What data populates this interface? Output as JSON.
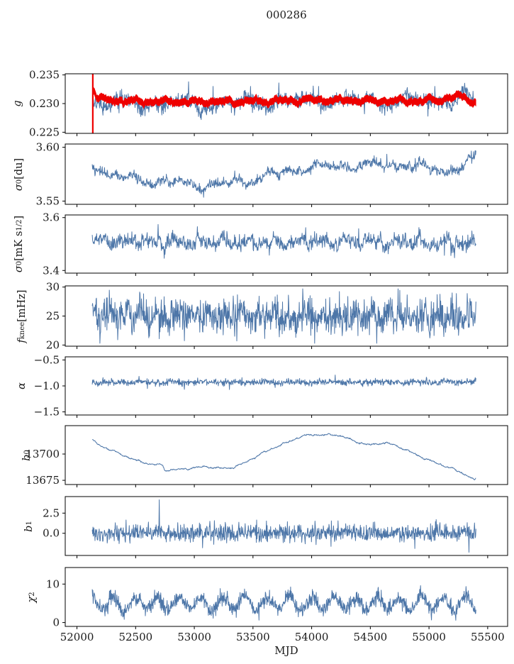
{
  "chart_data": {
    "type": "line",
    "title": "000286",
    "xlabel": "MJD",
    "xlim": [
      51900,
      55670
    ],
    "xticks": [
      {
        "v": 52000,
        "l": "52000"
      },
      {
        "v": 52500,
        "l": "52500"
      },
      {
        "v": 53000,
        "l": "53000"
      },
      {
        "v": 53500,
        "l": "53500"
      },
      {
        "v": 54000,
        "l": "54000"
      },
      {
        "v": 54500,
        "l": "54500"
      },
      {
        "v": 55000,
        "l": "55000"
      },
      {
        "v": 55500,
        "l": "55500"
      }
    ],
    "colors": {
      "data_line": "#4d76a8",
      "model_overlay": "#ee0000",
      "axis": "#000000",
      "text": "#1a1a1a"
    },
    "panels": [
      {
        "name": "g",
        "ylabel_tokens": [
          [
            "g",
            "",
            true
          ]
        ],
        "ylim": [
          0.2248,
          0.2352
        ],
        "yticks": [
          {
            "v": 0.225,
            "l": "0.225"
          },
          {
            "v": 0.23,
            "l": "0.230"
          },
          {
            "v": 0.235,
            "l": "0.235"
          }
        ],
        "series": [
          {
            "name": "g-measured",
            "type": "line",
            "color": "#4d76a8",
            "width": 1,
            "seed": 11,
            "points": 1000,
            "x0": 52140,
            "x1": 55395,
            "trend": [
              [
                52140,
                0.2302
              ],
              [
                52300,
                0.23
              ],
              [
                52600,
                0.23
              ],
              [
                52900,
                0.2299
              ],
              [
                53200,
                0.2299
              ],
              [
                53500,
                0.2301
              ],
              [
                53800,
                0.2303
              ],
              [
                54100,
                0.2305
              ],
              [
                54400,
                0.2304
              ],
              [
                54700,
                0.2304
              ],
              [
                55000,
                0.2303
              ],
              [
                55200,
                0.2308
              ],
              [
                55300,
                0.2312
              ],
              [
                55395,
                0.2303
              ]
            ],
            "noise": 0.00065,
            "smooth": {
              "amp": 0.0006,
              "scale": 500
            },
            "spikes": [
              [
                52380,
                0.2325
              ],
              [
                52950,
                0.2338
              ],
              [
                53060,
                0.2272
              ],
              [
                53160,
                0.233
              ],
              [
                53480,
                0.233
              ],
              [
                53720,
                0.2336
              ],
              [
                54060,
                0.233
              ],
              [
                54450,
                0.2282
              ],
              [
                54990,
                0.2278
              ],
              [
                55050,
                0.233
              ]
            ],
            "clip": [
              0.2256,
              0.2348
            ]
          },
          {
            "name": "g-model-band",
            "type": "band",
            "color": "#ee0000",
            "seed": 12,
            "points": 500,
            "x0": 52135,
            "x1": 55400,
            "trend": [
              [
                52135,
                0.233
              ],
              [
                52170,
                0.2312
              ],
              [
                52250,
                0.2306
              ],
              [
                52500,
                0.2304
              ],
              [
                53000,
                0.2303
              ],
              [
                53500,
                0.2304
              ],
              [
                54000,
                0.2306
              ],
              [
                54500,
                0.2305
              ],
              [
                54800,
                0.2304
              ],
              [
                55100,
                0.2306
              ],
              [
                55250,
                0.2314
              ],
              [
                55330,
                0.2308
              ],
              [
                55400,
                0.2301
              ]
            ],
            "halfwidth": 0.00058,
            "noise": 0.00012,
            "smooth": {
              "amp": 0.00025,
              "scale": 250
            }
          },
          {
            "name": "g-model-start-spike",
            "type": "vline",
            "color": "#ee0000",
            "width": 2.2,
            "x": 52135
          }
        ]
      },
      {
        "name": "sigma0-du",
        "ylabel_tokens": [
          [
            "σ",
            "",
            true
          ],
          [
            "0",
            "sub",
            false
          ],
          [
            " [du]",
            "",
            false
          ]
        ],
        "ylim": [
          3.547,
          3.603
        ],
        "yticks": [
          {
            "v": 3.55,
            "l": "3.55"
          },
          {
            "v": 3.6,
            "l": "3.60"
          }
        ],
        "series": [
          {
            "name": "sigma0-du-series",
            "type": "line",
            "color": "#4d76a8",
            "width": 1,
            "seed": 21,
            "points": 1000,
            "x0": 52130,
            "x1": 55400,
            "trend": [
              [
                52130,
                3.586
              ],
              [
                52250,
                3.576
              ],
              [
                52450,
                3.571
              ],
              [
                52700,
                3.568
              ],
              [
                52900,
                3.567
              ],
              [
                53100,
                3.5645
              ],
              [
                53250,
                3.566
              ],
              [
                53400,
                3.568
              ],
              [
                53600,
                3.5725
              ],
              [
                53800,
                3.578
              ],
              [
                53950,
                3.5815
              ],
              [
                54150,
                3.582
              ],
              [
                54350,
                3.5825
              ],
              [
                54550,
                3.583
              ],
              [
                54750,
                3.5845
              ],
              [
                54900,
                3.582
              ],
              [
                55050,
                3.579
              ],
              [
                55180,
                3.5775
              ],
              [
                55300,
                3.584
              ],
              [
                55400,
                3.59
              ]
            ],
            "noise": 0.0022,
            "smooth": {
              "amp": 0.0024,
              "scale": 420
            },
            "spikes": [
              [
                53080,
                3.5535
              ],
              [
                54640,
                3.5935
              ],
              [
                55360,
                3.5965
              ]
            ],
            "clip": [
              3.549,
              3.601
            ]
          }
        ]
      },
      {
        "name": "sigma0-mks",
        "ylabel_tokens": [
          [
            "σ",
            "",
            true
          ],
          [
            "0",
            "sub",
            false
          ],
          [
            "[mK s",
            "",
            false
          ],
          [
            "1/2",
            "sup",
            false
          ],
          [
            "]",
            "",
            false
          ]
        ],
        "ylim": [
          3.39,
          3.61
        ],
        "yticks": [
          {
            "v": 3.4,
            "l": "3.4"
          },
          {
            "v": 3.6,
            "l": "3.6"
          }
        ],
        "series": [
          {
            "name": "sigma0-mks-series",
            "type": "line",
            "color": "#4d76a8",
            "width": 1,
            "seed": 31,
            "points": 950,
            "x0": 52130,
            "x1": 55400,
            "trend": [
              [
                52130,
                3.512
              ],
              [
                52700,
                3.508
              ],
              [
                53500,
                3.506
              ],
              [
                54500,
                3.508
              ],
              [
                55400,
                3.503
              ]
            ],
            "noise": 0.0145,
            "smooth": {
              "amp": 0.011,
              "scale": 210
            },
            "spikes": [
              [
                52690,
                3.574
              ],
              [
                52745,
                3.446
              ],
              [
                53950,
                3.562
              ],
              [
                54400,
                3.558
              ],
              [
                55130,
                3.457
              ]
            ],
            "clip": [
              3.41,
              3.59
            ]
          }
        ]
      },
      {
        "name": "fknee",
        "ylabel_tokens": [
          [
            "f",
            "",
            true
          ],
          [
            "knee",
            "sub",
            false
          ],
          [
            " [mHz]",
            "",
            false
          ]
        ],
        "ylim": [
          19.8,
          30.2
        ],
        "yticks": [
          {
            "v": 20,
            "l": "20"
          },
          {
            "v": 25,
            "l": "25"
          },
          {
            "v": 30,
            "l": "30"
          }
        ],
        "series": [
          {
            "name": "fknee-series",
            "type": "line",
            "color": "#4d76a8",
            "width": 1,
            "seed": 41,
            "points": 1100,
            "x0": 52130,
            "x1": 55400,
            "trend": [
              [
                52130,
                25.1
              ],
              [
                55400,
                24.9
              ]
            ],
            "noise": 1.5,
            "smooth": {
              "amp": 0.55,
              "scale": 140
            },
            "clip": [
              20.3,
              29.7
            ]
          }
        ]
      },
      {
        "name": "alpha",
        "ylabel_tokens": [
          [
            "α",
            "",
            true
          ]
        ],
        "ylim": [
          -1.56,
          -0.44
        ],
        "yticks": [
          {
            "v": -0.5,
            "l": "−0.5"
          },
          {
            "v": -1.0,
            "l": "−1.0"
          },
          {
            "v": -1.5,
            "l": "−1.5"
          }
        ],
        "series": [
          {
            "name": "alpha-series",
            "type": "line",
            "color": "#4d76a8",
            "width": 1,
            "seed": 51,
            "points": 1100,
            "x0": 52130,
            "x1": 55400,
            "trend": [
              [
                52130,
                -0.93
              ],
              [
                55400,
                -0.925
              ]
            ],
            "noise": 0.03,
            "smooth": {
              "amp": 0.012,
              "scale": 260
            },
            "spikes": [
              [
                52600,
                -1.05
              ],
              [
                53300,
                -1.07
              ],
              [
                54200,
                -0.79
              ]
            ],
            "clip": [
              -1.12,
              -0.74
            ]
          }
        ]
      },
      {
        "name": "b0",
        "ylabel_tokens": [
          [
            "b",
            "",
            true
          ],
          [
            "0",
            "sub",
            false
          ]
        ],
        "ylim": [
          13671,
          13727
        ],
        "yticks": [
          {
            "v": 13675,
            "l": "13675"
          },
          {
            "v": 13700,
            "l": "13700"
          }
        ],
        "series": [
          {
            "name": "b0-series",
            "type": "line",
            "color": "#4d76a8",
            "width": 1,
            "seed": 61,
            "points": 1200,
            "x0": 52130,
            "x1": 55400,
            "trend": [
              [
                52130,
                13713
              ],
              [
                52200,
                13708
              ],
              [
                52350,
                13701
              ],
              [
                52500,
                13694
              ],
              [
                52620,
                13690.5
              ],
              [
                52730,
                13689.5
              ],
              [
                52748,
                13684.5
              ],
              [
                52900,
                13685.5
              ],
              [
                53000,
                13687
              ],
              [
                53100,
                13688
              ],
              [
                53200,
                13686.5
              ],
              [
                53300,
                13686.5
              ],
              [
                53400,
                13690
              ],
              [
                53500,
                13696
              ],
              [
                53560,
                13699.5
              ],
              [
                53620,
                13703
              ],
              [
                53700,
                13707
              ],
              [
                53780,
                13710.5
              ],
              [
                53850,
                13714
              ],
              [
                53920,
                13717
              ],
              [
                54000,
                13718.5
              ],
              [
                54100,
                13718
              ],
              [
                54200,
                13718.5
              ],
              [
                54280,
                13716
              ],
              [
                54350,
                13713
              ],
              [
                54430,
                13710
              ],
              [
                54500,
                13708.5
              ],
              [
                54560,
                13710
              ],
              [
                54640,
                13710.5
              ],
              [
                54720,
                13708
              ],
              [
                54800,
                13704
              ],
              [
                54900,
                13699
              ],
              [
                55000,
                13694
              ],
              [
                55100,
                13690
              ],
              [
                55200,
                13686
              ],
              [
                55300,
                13681
              ],
              [
                55355,
                13678
              ],
              [
                55385,
                13674.5
              ],
              [
                55400,
                13676.5
              ]
            ],
            "noise": 0.22,
            "smooth": {
              "amp": 0.5,
              "scale": 180
            }
          }
        ]
      },
      {
        "name": "b1",
        "ylabel_tokens": [
          [
            "b",
            "",
            true
          ],
          [
            "1",
            "sub",
            false
          ]
        ],
        "ylim": [
          -2.75,
          4.55
        ],
        "yticks": [
          {
            "v": 0.0,
            "l": "0.0"
          },
          {
            "v": 2.5,
            "l": "2.5"
          }
        ],
        "series": [
          {
            "name": "b1-series",
            "type": "line",
            "color": "#4d76a8",
            "width": 1,
            "seed": 71,
            "points": 1100,
            "x0": 52130,
            "x1": 55400,
            "trend": [
              [
                52130,
                0.05
              ],
              [
                55400,
                0
              ]
            ],
            "noise": 0.55,
            "smooth": {
              "amp": 0.08,
              "scale": 200
            },
            "spikes": [
              [
                52420,
                1.65
              ],
              [
                52700,
                4.15
              ],
              [
                53070,
                -1.8
              ],
              [
                54880,
                -1.9
              ],
              [
                55060,
                1.7
              ],
              [
                55340,
                -2.35
              ]
            ],
            "clip": [
              -2.5,
              4.3
            ]
          }
        ]
      },
      {
        "name": "chi2",
        "ylabel_tokens": [
          [
            "χ",
            "",
            true
          ],
          [
            "2",
            "sup",
            false
          ]
        ],
        "ylim": [
          -1.0,
          14.3
        ],
        "yticks": [
          {
            "v": 0,
            "l": "0"
          },
          {
            "v": 10,
            "l": "10"
          }
        ],
        "series": [
          {
            "name": "chi2-series",
            "type": "line",
            "color": "#4d76a8",
            "width": 1,
            "seed": 81,
            "points": 1200,
            "x0": 52130,
            "x1": 55400,
            "trend": [
              [
                52130,
                4.9
              ],
              [
                55400,
                5.0
              ]
            ],
            "sine": {
              "amp": 1.7,
              "period": 188,
              "phase": 2.0
            },
            "noise": 1.0,
            "smooth": {
              "amp": 0.3,
              "scale": 400
            },
            "clip": [
              0.5,
              9.6
            ]
          }
        ]
      }
    ]
  }
}
